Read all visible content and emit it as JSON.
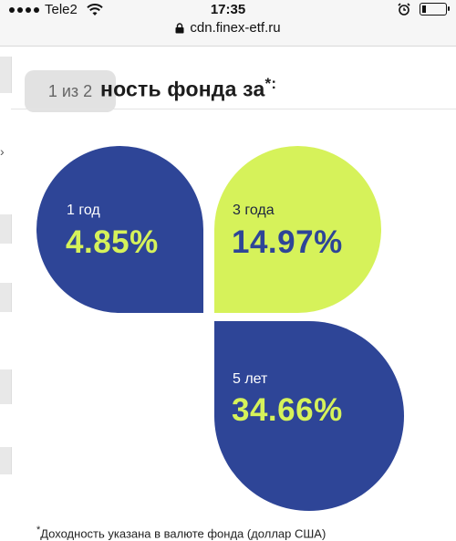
{
  "status_bar": {
    "carrier": "Tele2",
    "time": "17:35"
  },
  "browser": {
    "url": "cdn.finex-etf.ru"
  },
  "page_indicator": "1 из 2",
  "heading": {
    "text": "ность фонда за",
    "mark": "*:"
  },
  "cards": [
    {
      "period": "1 год",
      "value": "4.85%",
      "color": "#2e4597"
    },
    {
      "period": "3 года",
      "value": "14.97%",
      "color": "#d6f25a"
    },
    {
      "period": "5 лет",
      "value": "34.66%",
      "color": "#2e4597"
    }
  ],
  "footnote": {
    "mark": "*",
    "text": "Доходность указана в валюте фонда (доллар США)"
  }
}
